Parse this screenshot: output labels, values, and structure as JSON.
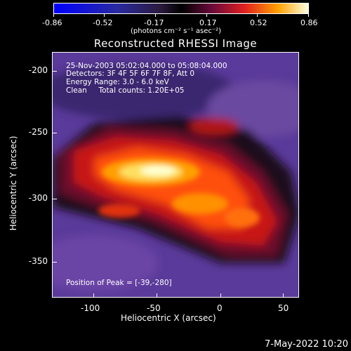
{
  "colorbar": {
    "ticks": [
      "-0.86",
      "-0.52",
      "-0.17",
      "0.17",
      "0.52",
      "0.86"
    ],
    "units": "(photons cm⁻² s⁻¹ asec⁻²)"
  },
  "title": "Reconstructed RHESSI Image",
  "info": {
    "time_range": "25-Nov-2003 05:02:04.000 to 05:08:04.000",
    "detectors": "Detectors: 3F 4F 5F 6F 7F 8F, Att 0",
    "energy": "Energy Range: 3.0 - 6.0 keV",
    "method": "Clean     Total counts: 1.20E+05",
    "peak": "Position of Peak = [-39,-280]"
  },
  "axes": {
    "xlabel": "Heliocentric X (arcsec)",
    "ylabel": "Heliocentric Y (arcsec)",
    "xticks": [
      "-100",
      "-50",
      "0",
      "50"
    ],
    "yticks": [
      "-200",
      "-250",
      "-300",
      "-350"
    ]
  },
  "datestamp": "7-May-2022 10:20",
  "colors": {
    "background": "#000000",
    "text": "#ffffff"
  }
}
